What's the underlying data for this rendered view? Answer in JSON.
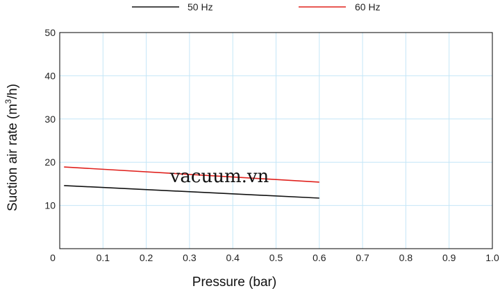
{
  "chart_data": {
    "type": "line",
    "title": "",
    "xlabel": "Pressure (bar)",
    "ylabel_main": "Suction air rate (m",
    "ylabel_sup": "3",
    "ylabel_end": "/h)",
    "xlim": [
      0,
      1.0
    ],
    "ylim": [
      0,
      50
    ],
    "x_ticks": [
      0,
      0.1,
      0.2,
      0.3,
      0.4,
      0.5,
      0.6,
      0.7,
      0.8,
      0.9,
      1.0
    ],
    "x_tick_labels": [
      "0",
      "0.1",
      "0.2",
      "0.3",
      "0.4",
      "0.5",
      "0.6",
      "0.7",
      "0.8",
      "0.9",
      "1.0"
    ],
    "y_ticks": [
      10,
      20,
      30,
      40,
      50
    ],
    "y_tick_labels": [
      "10",
      "20",
      "30",
      "40",
      "50"
    ],
    "grid": true,
    "legend_position": "top-center",
    "series": [
      {
        "name": "50 Hz",
        "color": "#111111",
        "x": [
          0.01,
          0.6
        ],
        "y": [
          14.6,
          11.7
        ]
      },
      {
        "name": "60 Hz",
        "color": "#e0201c",
        "x": [
          0.01,
          0.6
        ],
        "y": [
          18.9,
          15.4
        ]
      }
    ],
    "watermark": "vacuum.vn"
  }
}
